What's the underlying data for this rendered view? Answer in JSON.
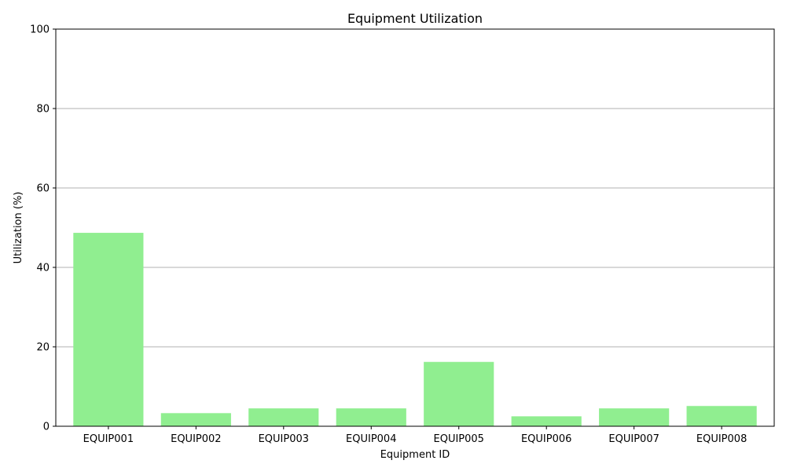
{
  "chart_data": {
    "type": "bar",
    "title": "Equipment Utilization",
    "xlabel": "Equipment ID",
    "ylabel": "Utilization (%)",
    "categories": [
      "EQUIP001",
      "EQUIP002",
      "EQUIP003",
      "EQUIP004",
      "EQUIP005",
      "EQUIP006",
      "EQUIP007",
      "EQUIP008"
    ],
    "values": [
      48.7,
      3.3,
      4.5,
      4.5,
      16.2,
      2.5,
      4.5,
      5.1
    ],
    "ylim": [
      0,
      100
    ],
    "yticks": [
      0,
      20,
      40,
      60,
      80,
      100
    ],
    "grid": "horizontal",
    "bar_color": "#90ee90",
    "grid_color": "#b0b0b0"
  }
}
